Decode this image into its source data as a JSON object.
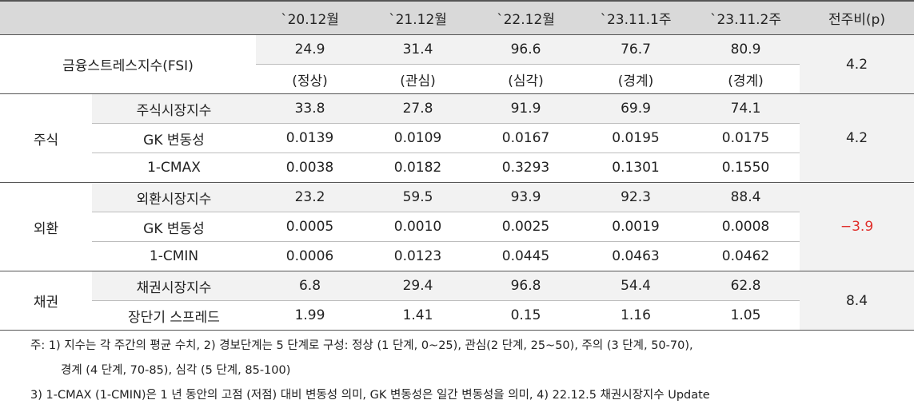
{
  "table": {
    "header": [
      "`20.12월",
      "`21.12월",
      "`22.12월",
      "`23.11.1주",
      "`23.11.2주",
      "전주비(p)"
    ],
    "fsi": {
      "label": "금융스트레스지수(FSI)",
      "values": [
        "24.9",
        "31.4",
        "96.6",
        "76.7",
        "80.9"
      ],
      "states": [
        "(정상)",
        "(관심)",
        "(심각)",
        "(경계)",
        "(경계)"
      ],
      "change": "4.2"
    },
    "groups": [
      {
        "label": "주식",
        "change": "4.2",
        "rows": [
          {
            "label": "주식시장지수",
            "values": [
              "33.8",
              "27.8",
              "91.9",
              "69.9",
              "74.1"
            ]
          },
          {
            "label": "GK 변동성",
            "values": [
              "0.0139",
              "0.0109",
              "0.0167",
              "0.0195",
              "0.0175"
            ]
          },
          {
            "label": "1-CMAX",
            "values": [
              "0.0038",
              "0.0182",
              "0.3293",
              "0.1301",
              "0.1550"
            ]
          }
        ]
      },
      {
        "label": "외환",
        "change": "−3.9",
        "change_color": "#e0302c",
        "rows": [
          {
            "label": "외환시장지수",
            "values": [
              "23.2",
              "59.5",
              "93.9",
              "92.3",
              "88.4"
            ]
          },
          {
            "label": "GK 변동성",
            "values": [
              "0.0005",
              "0.0010",
              "0.0025",
              "0.0019",
              "0.0008"
            ]
          },
          {
            "label": "1-CMIN",
            "values": [
              "0.0006",
              "0.0123",
              "0.0445",
              "0.0463",
              "0.0462"
            ]
          }
        ]
      },
      {
        "label": "채권",
        "change": "8.4",
        "rows": [
          {
            "label": "채권시장지수",
            "values": [
              "6.8",
              "29.4",
              "96.8",
              "54.4",
              "62.8"
            ]
          },
          {
            "label": "장단기 스프레드",
            "values": [
              "1.99",
              "1.41",
              "0.15",
              "1.16",
              "1.05"
            ]
          }
        ]
      }
    ]
  },
  "notes": [
    "주: 1) 지수는 각 주간의 평균 수치, 2) 경보단계는 5 단계로 구성: 정상 (1 단계, 0~25), 관심(2 단계, 25~50), 주의 (3 단계, 50-70),",
    "경계 (4 단계, 70-85), 심각 (5 단계, 85-100)",
    "3) 1-CMAX (1-CMIN)은 1 년 동안의 고점 (저점) 대비 변동성 의미, GK 변동성은 일간 변동성을 의미, 4) 22.12.5 채권시장지수 Update"
  ]
}
